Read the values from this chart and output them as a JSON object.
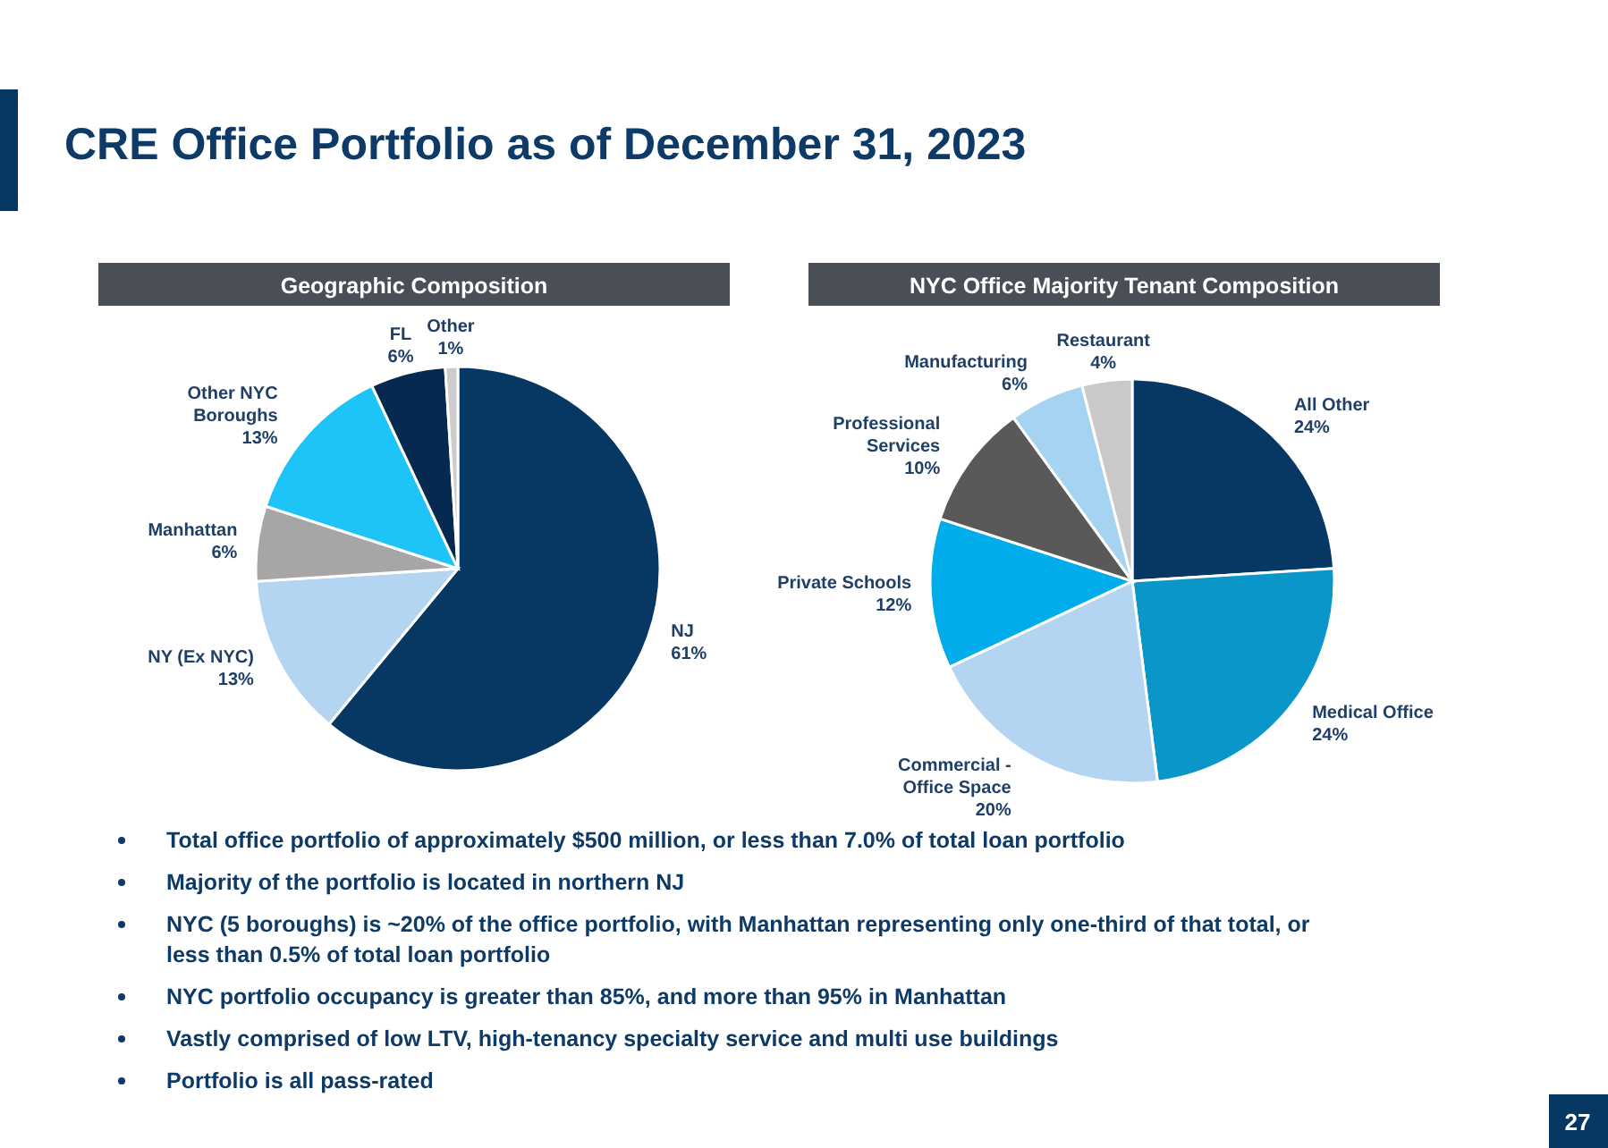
{
  "chart_data": [
    {
      "type": "other",
      "title": "CRE Office Portfolio as of December 31, 2023",
      "annotations": [
        "Total office portfolio of approximately $500 million, or less than 7.0% of total loan portfolio",
        "Majority of the portfolio is located in northern NJ",
        "NYC (5 boroughs) is ~20% of the office portfolio, with Manhattan representing only one-third of that total, or less than 0.5% of total loan portfolio",
        "NYC portfolio occupancy is greater than 85%, and more than 95% in Manhattan",
        "Vastly comprised of low LTV, high-tenancy specialty service and multi use buildings",
        "Portfolio is all pass-rated",
        "27"
      ]
    },
    {
      "type": "pie",
      "title": "Geographic Composition",
      "categories": [
        "NJ",
        "NY (Ex NYC)",
        "Manhattan",
        "Other NYC Boroughs",
        "FL",
        "Other"
      ],
      "values": [
        61,
        13,
        6,
        13,
        6,
        1
      ],
      "value_labels": [
        "61%",
        "13%",
        "6%",
        "13%",
        "6%",
        "1%"
      ],
      "colors": [
        "#073763",
        "#b4d5f2",
        "#a6a6a6",
        "#1ec3f7",
        "#062a4f",
        "#cccccc"
      ]
    },
    {
      "type": "pie",
      "title": "NYC Office Majority Tenant Composition",
      "categories": [
        "All Other",
        "Medical Office",
        "Commercial - Office Space",
        "Private Schools",
        "Professional Services",
        "Manufacturing",
        "Restaurant"
      ],
      "values": [
        24,
        24,
        20,
        12,
        10,
        6,
        4
      ],
      "value_labels": [
        "24%",
        "24%",
        "20%",
        "12%",
        "10%",
        "6%",
        "4%"
      ],
      "colors": [
        "#073763",
        "#0a96c8",
        "#b4d5f2",
        "#00adea",
        "#595959",
        "#a6d3f2",
        "#c9c9c9"
      ]
    }
  ]
}
